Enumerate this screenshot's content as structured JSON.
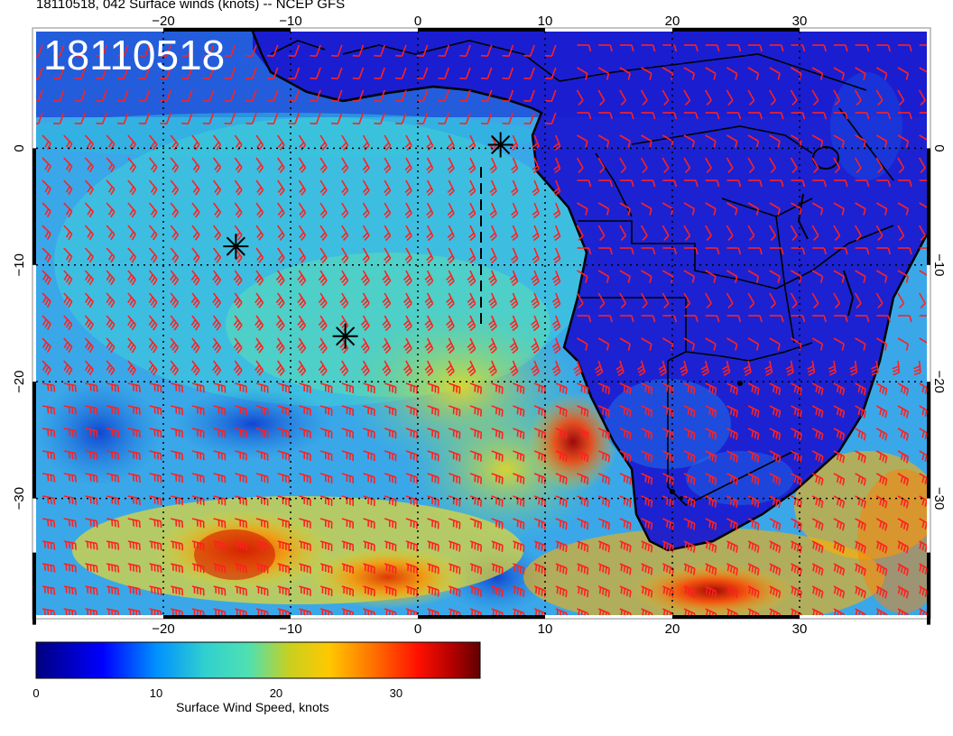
{
  "header": {
    "title": "18110518, 042 Surface winds (knots) -- NCEP GFS",
    "stamp": "18110518"
  },
  "map": {
    "lon_ticks": [
      "−20",
      "−10",
      "0",
      "10",
      "20",
      "30"
    ],
    "lat_ticks": [
      "0",
      "−10",
      "−20",
      "−30"
    ],
    "lon_range": [
      -30,
      40
    ],
    "lat_range": [
      -40,
      10
    ],
    "storm_markers": [
      {
        "lon": 6.5,
        "lat": 0.3
      },
      {
        "lon": -14.3,
        "lat": -8.4
      },
      {
        "lon": -5.7,
        "lat": -16.1
      }
    ],
    "colors": {
      "barb": "#ff2020",
      "coast": "#000000"
    }
  },
  "colorbar": {
    "label": "Surface Wind Speed, knots",
    "ticks": [
      "0",
      "10",
      "20",
      "30"
    ],
    "range": [
      0,
      37
    ],
    "colors": [
      "#000080",
      "#0000ff",
      "#00a0ff",
      "#30d0d0",
      "#40e0c0",
      "#c0d020",
      "#ffd000",
      "#ff8000",
      "#ff2000",
      "#c00000",
      "#600000"
    ]
  }
}
